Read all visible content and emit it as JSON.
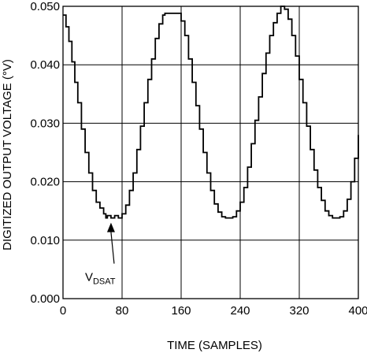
{
  "chart_data": {
    "type": "line",
    "title": "",
    "xlabel": "TIME (SAMPLES)",
    "ylabel": "DIGITIZED OUTPUT VOLTAGE (°V)",
    "xlim": [
      0,
      400
    ],
    "ylim": [
      0.0,
      0.05
    ],
    "x_ticks": [
      0,
      80,
      160,
      240,
      320,
      400
    ],
    "x_tick_labels": [
      "0",
      "80",
      "160",
      "240",
      "320",
      "400"
    ],
    "y_ticks": [
      0.0,
      0.01,
      0.02,
      0.03,
      0.04,
      0.05
    ],
    "y_tick_labels": [
      "0.000",
      "0.010",
      "0.020",
      "0.030",
      "0.040",
      "0.050"
    ],
    "grid": true,
    "annotation": {
      "text": "V",
      "subscript": "DSAT",
      "x": 65,
      "y": 0.0138
    },
    "series": [
      {
        "x": [
          0,
          4,
          8,
          12,
          16,
          20,
          25,
          30,
          35,
          40,
          45,
          50,
          55,
          58,
          60,
          65,
          70,
          75,
          80,
          85,
          90,
          95,
          100,
          105,
          110,
          115,
          120,
          125,
          130,
          135,
          138,
          140,
          145,
          150,
          155,
          160,
          165,
          170,
          175,
          180,
          185,
          190,
          195,
          200,
          205,
          210,
          215,
          220,
          225,
          230,
          235,
          240,
          245,
          250,
          255,
          260,
          265,
          270,
          275,
          280,
          285,
          290,
          295,
          300,
          305,
          310,
          315,
          320,
          325,
          330,
          335,
          340,
          345,
          350,
          355,
          360,
          365,
          370,
          375,
          380,
          385,
          390,
          395,
          400
        ],
        "y": [
          0.0485,
          0.0465,
          0.044,
          0.0405,
          0.037,
          0.0335,
          0.029,
          0.025,
          0.0215,
          0.0185,
          0.0165,
          0.0155,
          0.0145,
          0.0138,
          0.0142,
          0.0138,
          0.0142,
          0.0138,
          0.0145,
          0.016,
          0.0185,
          0.0215,
          0.0255,
          0.0295,
          0.0335,
          0.0375,
          0.041,
          0.0445,
          0.047,
          0.0485,
          0.0488,
          0.0488,
          0.0488,
          0.0488,
          0.0488,
          0.0475,
          0.045,
          0.041,
          0.037,
          0.033,
          0.029,
          0.025,
          0.0215,
          0.0185,
          0.0162,
          0.0148,
          0.014,
          0.0138,
          0.0138,
          0.014,
          0.015,
          0.0165,
          0.019,
          0.0225,
          0.0265,
          0.0305,
          0.0345,
          0.0385,
          0.042,
          0.045,
          0.0472,
          0.0488,
          0.05,
          0.0495,
          0.0478,
          0.045,
          0.0415,
          0.0375,
          0.0335,
          0.0295,
          0.0255,
          0.022,
          0.019,
          0.0168,
          0.015,
          0.0142,
          0.0138,
          0.0138,
          0.014,
          0.015,
          0.017,
          0.02,
          0.024,
          0.028
        ]
      }
    ]
  }
}
